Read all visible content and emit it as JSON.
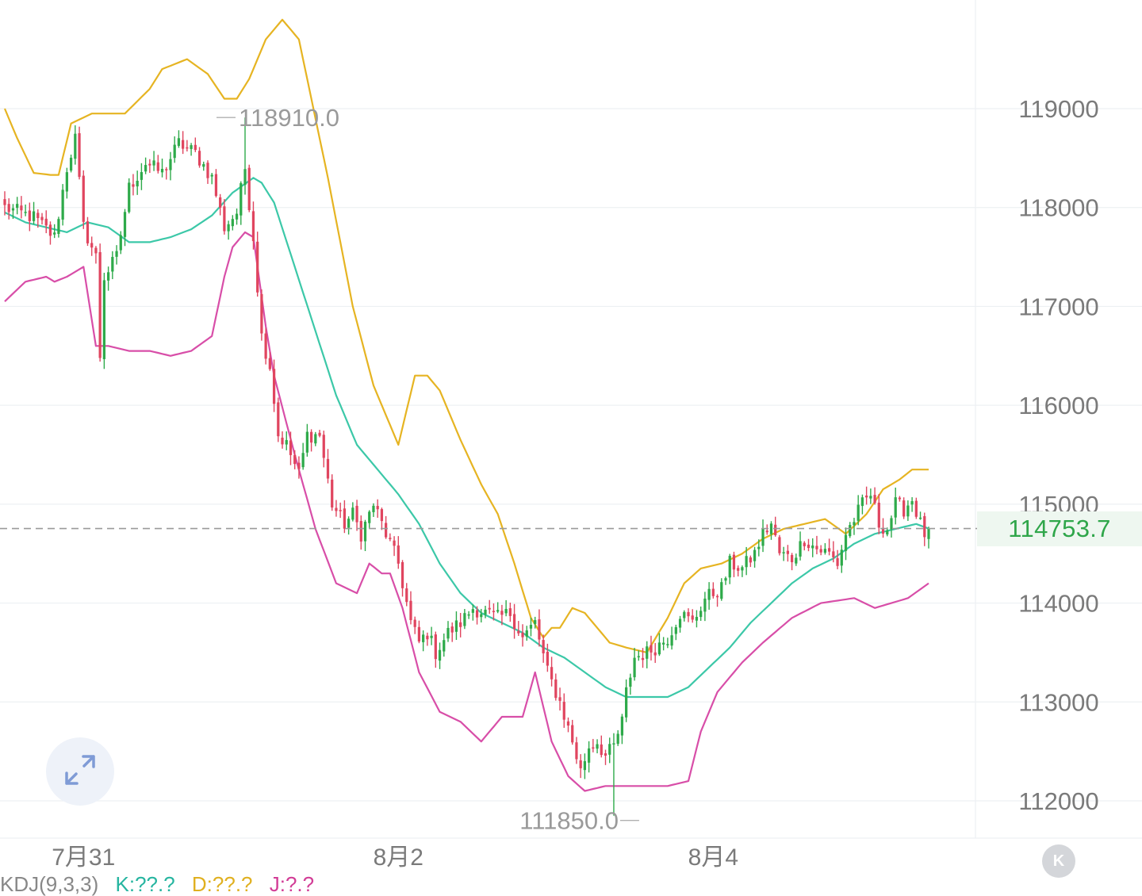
{
  "current_price": "114753.7",
  "colors": {
    "up": "#2eaa4a",
    "down": "#e0455f",
    "upper_band": "#e6b422",
    "middle_band": "#3cc8a8",
    "lower_band": "#d84ea8",
    "grid": "#edf0f3",
    "price_line": "#9a9a9a",
    "axis_text": "#7a7a7a",
    "price_tag_text": "#2fa64a",
    "price_tag_bg": "#eef7f0"
  },
  "icons": {
    "expand": "expand-arrows-icon",
    "k_button": "k-logo-icon"
  },
  "k_button_label": "K",
  "indicator": {
    "name": "KDJ(9,3,3)",
    "k": "K:??.?",
    "d": "D:??.?",
    "j": "J:?.?"
  },
  "chart_data": {
    "type": "candlestick",
    "title": "",
    "xlabel": "",
    "ylabel": "",
    "ylim": [
      111650,
      120100
    ],
    "grid": true,
    "y_ticks": [
      119000,
      118000,
      117000,
      116000,
      115000,
      114000,
      113000,
      112000
    ],
    "y_tick_labels": [
      "119000",
      "118000",
      "117000",
      "116000",
      "115000",
      "114000",
      "113000",
      "112000"
    ],
    "x_tick_labels": [
      {
        "label": "7月31",
        "index": 19
      },
      {
        "label": "8月2",
        "index": 95
      },
      {
        "label": "8月4",
        "index": 171
      }
    ],
    "candle_count": 224,
    "high_annotation": {
      "label": "118910.0",
      "value": 118910.0,
      "index": 58
    },
    "low_annotation": {
      "label": "111850.0",
      "value": 111850.0,
      "index": 147
    },
    "last_price": 114753.7,
    "close_anchors": [
      [
        0,
        118000
      ],
      [
        7,
        117900
      ],
      [
        12,
        117700
      ],
      [
        15,
        118400
      ],
      [
        17,
        118700
      ],
      [
        19,
        117800
      ],
      [
        22,
        117500
      ],
      [
        23,
        116500
      ],
      [
        24,
        117300
      ],
      [
        27,
        117500
      ],
      [
        30,
        118200
      ],
      [
        34,
        118450
      ],
      [
        38,
        118350
      ],
      [
        42,
        118650
      ],
      [
        46,
        118550
      ],
      [
        50,
        118300
      ],
      [
        53,
        117800
      ],
      [
        56,
        117950
      ],
      [
        58,
        118400
      ],
      [
        60,
        117700
      ],
      [
        62,
        116700
      ],
      [
        64,
        116400
      ],
      [
        66,
        115700
      ],
      [
        68,
        115600
      ],
      [
        71,
        115300
      ],
      [
        73,
        115700
      ],
      [
        76,
        115700
      ],
      [
        79,
        115000
      ],
      [
        82,
        114800
      ],
      [
        84,
        114900
      ],
      [
        86,
        114700
      ],
      [
        89,
        115000
      ],
      [
        91,
        114800
      ],
      [
        93,
        114600
      ],
      [
        95,
        114400
      ],
      [
        98,
        113800
      ],
      [
        100,
        113600
      ],
      [
        102,
        113700
      ],
      [
        104,
        113500
      ],
      [
        107,
        113700
      ],
      [
        110,
        113800
      ],
      [
        113,
        113950
      ],
      [
        116,
        113900
      ],
      [
        119,
        113850
      ],
      [
        122,
        113900
      ],
      [
        125,
        113650
      ],
      [
        128,
        113800
      ],
      [
        131,
        113300
      ],
      [
        134,
        113000
      ],
      [
        137,
        112600
      ],
      [
        139,
        112300
      ],
      [
        141,
        112550
      ],
      [
        143,
        112600
      ],
      [
        145,
        112450
      ],
      [
        147,
        112550
      ],
      [
        149,
        112800
      ],
      [
        150,
        113100
      ],
      [
        152,
        113450
      ],
      [
        155,
        113500
      ],
      [
        157,
        113550
      ],
      [
        160,
        113650
      ],
      [
        163,
        113900
      ],
      [
        166,
        113800
      ],
      [
        169,
        114050
      ],
      [
        173,
        114150
      ],
      [
        175,
        114400
      ],
      [
        178,
        114350
      ],
      [
        181,
        114500
      ],
      [
        183,
        114700
      ],
      [
        185,
        114800
      ],
      [
        187,
        114500
      ],
      [
        190,
        114450
      ],
      [
        193,
        114650
      ],
      [
        196,
        114550
      ],
      [
        199,
        114500
      ],
      [
        201,
        114400
      ],
      [
        203,
        114700
      ],
      [
        205,
        114850
      ],
      [
        207,
        115000
      ],
      [
        209,
        115100
      ],
      [
        211,
        114800
      ],
      [
        213,
        114750
      ],
      [
        215,
        115000
      ],
      [
        217,
        114950
      ],
      [
        219,
        115050
      ],
      [
        221,
        114800
      ],
      [
        222,
        114700
      ],
      [
        223,
        114753.7
      ]
    ],
    "series": [
      {
        "name": "upper",
        "x": [
          0,
          3,
          7,
          11,
          13,
          16,
          21,
          26,
          29,
          35,
          38,
          44,
          49,
          53,
          56,
          59,
          63,
          67,
          71,
          78,
          84,
          89,
          95,
          99,
          102,
          105,
          110,
          115,
          119,
          123,
          127,
          130,
          132,
          134,
          137,
          140,
          143,
          146,
          150,
          155,
          160,
          164,
          168,
          173,
          178,
          183,
          188,
          193,
          198,
          203,
          208,
          212,
          216,
          219,
          223
        ],
        "values": [
          119000,
          118700,
          118350,
          118330,
          118330,
          118850,
          118950,
          118950,
          118950,
          119200,
          119400,
          119500,
          119350,
          119100,
          119100,
          119300,
          119700,
          119900,
          119700,
          118300,
          117000,
          116200,
          115600,
          116300,
          116300,
          116150,
          115650,
          115200,
          114900,
          114400,
          113850,
          113650,
          113750,
          113750,
          113950,
          113900,
          113750,
          113600,
          113550,
          113500,
          113850,
          114200,
          114350,
          114400,
          114500,
          114650,
          114750,
          114800,
          114850,
          114700,
          114900,
          115150,
          115250,
          115350,
          115350
        ]
      },
      {
        "name": "middle",
        "x": [
          0,
          5,
          10,
          15,
          20,
          25,
          30,
          35,
          40,
          45,
          50,
          55,
          60,
          62,
          65,
          70,
          75,
          80,
          85,
          90,
          95,
          100,
          105,
          110,
          115,
          120,
          125,
          130,
          135,
          140,
          145,
          150,
          155,
          160,
          165,
          170,
          175,
          180,
          185,
          190,
          195,
          200,
          205,
          210,
          215,
          220,
          223
        ],
        "values": [
          117950,
          117850,
          117800,
          117750,
          117850,
          117800,
          117650,
          117650,
          117700,
          117780,
          117920,
          118150,
          118300,
          118250,
          118050,
          117400,
          116750,
          116100,
          115600,
          115350,
          115100,
          114800,
          114400,
          114100,
          113900,
          113800,
          113700,
          113550,
          113450,
          113300,
          113150,
          113050,
          113050,
          113050,
          113150,
          113350,
          113550,
          113800,
          114000,
          114200,
          114350,
          114450,
          114600,
          114700,
          114750,
          114800,
          114753
        ]
      },
      {
        "name": "lower",
        "x": [
          0,
          5,
          10,
          12,
          15,
          19,
          22,
          25,
          30,
          35,
          40,
          45,
          50,
          53,
          55,
          58,
          60,
          63,
          65,
          70,
          75,
          80,
          85,
          88,
          91,
          93,
          96,
          100,
          105,
          110,
          115,
          120,
          125,
          128,
          132,
          136,
          140,
          145,
          150,
          155,
          160,
          165,
          168,
          172,
          178,
          183,
          190,
          197,
          205,
          210,
          214,
          218,
          223
        ],
        "values": [
          117050,
          117250,
          117300,
          117250,
          117300,
          117400,
          116600,
          116600,
          116550,
          116550,
          116500,
          116550,
          116700,
          117300,
          117600,
          117750,
          117700,
          116800,
          116300,
          115500,
          114750,
          114200,
          114100,
          114400,
          114300,
          114300,
          113950,
          113300,
          112900,
          112800,
          112600,
          112850,
          112850,
          113300,
          112600,
          112250,
          112100,
          112150,
          112150,
          112150,
          112150,
          112200,
          112700,
          113100,
          113400,
          113600,
          113850,
          114000,
          114050,
          113950,
          114000,
          114050,
          114200
        ]
      }
    ]
  }
}
